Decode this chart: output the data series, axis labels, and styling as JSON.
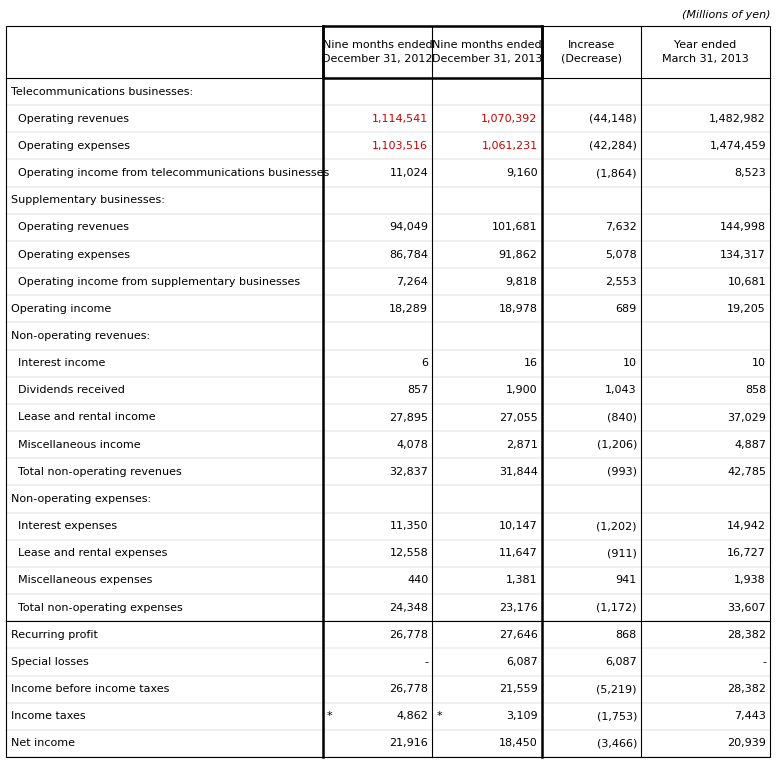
{
  "header_note": "(Millions of yen)",
  "col_headers": [
    "Nine months ended\nDecember 31, 2012",
    "Nine months ended\nDecember 31, 2013",
    "Increase\n(Decrease)",
    "Year ended\nMarch 31, 2013"
  ],
  "rows": [
    {
      "label": "Telecommunications businesses:",
      "indent": 0,
      "values": [
        "",
        "",
        "",
        ""
      ],
      "section_header": true,
      "separator_above": false,
      "col1_red": false,
      "col2_red": false,
      "asterisk": false
    },
    {
      "label": "  Operating revenues",
      "indent": 1,
      "values": [
        "1,114,541",
        "1,070,392",
        "(44,148)",
        "1,482,982"
      ],
      "section_header": false,
      "separator_above": false,
      "col1_red": true,
      "col2_red": true,
      "asterisk": false
    },
    {
      "label": "  Operating expenses",
      "indent": 1,
      "values": [
        "1,103,516",
        "1,061,231",
        "(42,284)",
        "1,474,459"
      ],
      "section_header": false,
      "separator_above": false,
      "col1_red": true,
      "col2_red": true,
      "asterisk": false
    },
    {
      "label": "  Operating income from telecommunications businesses",
      "indent": 1,
      "values": [
        "11,024",
        "9,160",
        "(1,864)",
        "8,523"
      ],
      "section_header": false,
      "separator_above": false,
      "col1_red": false,
      "col2_red": false,
      "asterisk": false
    },
    {
      "label": "Supplementary businesses:",
      "indent": 0,
      "values": [
        "",
        "",
        "",
        ""
      ],
      "section_header": true,
      "separator_above": false,
      "col1_red": false,
      "col2_red": false,
      "asterisk": false
    },
    {
      "label": "  Operating revenues",
      "indent": 1,
      "values": [
        "94,049",
        "101,681",
        "7,632",
        "144,998"
      ],
      "section_header": false,
      "separator_above": false,
      "col1_red": false,
      "col2_red": false,
      "asterisk": false
    },
    {
      "label": "  Operating expenses",
      "indent": 1,
      "values": [
        "86,784",
        "91,862",
        "5,078",
        "134,317"
      ],
      "section_header": false,
      "separator_above": false,
      "col1_red": false,
      "col2_red": false,
      "asterisk": false
    },
    {
      "label": "  Operating income from supplementary businesses",
      "indent": 1,
      "values": [
        "7,264",
        "9,818",
        "2,553",
        "10,681"
      ],
      "section_header": false,
      "separator_above": false,
      "col1_red": false,
      "col2_red": false,
      "asterisk": false
    },
    {
      "label": "Operating income",
      "indent": 0,
      "values": [
        "18,289",
        "18,978",
        "689",
        "19,205"
      ],
      "section_header": false,
      "separator_above": false,
      "col1_red": false,
      "col2_red": false,
      "asterisk": false
    },
    {
      "label": "Non-operating revenues:",
      "indent": 0,
      "values": [
        "",
        "",
        "",
        ""
      ],
      "section_header": true,
      "separator_above": false,
      "col1_red": false,
      "col2_red": false,
      "asterisk": false
    },
    {
      "label": "  Interest income",
      "indent": 1,
      "values": [
        "6",
        "16",
        "10",
        "10"
      ],
      "section_header": false,
      "separator_above": false,
      "col1_red": false,
      "col2_red": false,
      "asterisk": false
    },
    {
      "label": "  Dividends received",
      "indent": 1,
      "values": [
        "857",
        "1,900",
        "1,043",
        "858"
      ],
      "section_header": false,
      "separator_above": false,
      "col1_red": false,
      "col2_red": false,
      "asterisk": false
    },
    {
      "label": "  Lease and rental income",
      "indent": 1,
      "values": [
        "27,895",
        "27,055",
        "(840)",
        "37,029"
      ],
      "section_header": false,
      "separator_above": false,
      "col1_red": false,
      "col2_red": false,
      "asterisk": false
    },
    {
      "label": "  Miscellaneous income",
      "indent": 1,
      "values": [
        "4,078",
        "2,871",
        "(1,206)",
        "4,887"
      ],
      "section_header": false,
      "separator_above": false,
      "col1_red": false,
      "col2_red": false,
      "asterisk": false
    },
    {
      "label": "  Total non-operating revenues",
      "indent": 1,
      "values": [
        "32,837",
        "31,844",
        "(993)",
        "42,785"
      ],
      "section_header": false,
      "separator_above": false,
      "col1_red": false,
      "col2_red": false,
      "asterisk": false
    },
    {
      "label": "Non-operating expenses:",
      "indent": 0,
      "values": [
        "",
        "",
        "",
        ""
      ],
      "section_header": true,
      "separator_above": false,
      "col1_red": false,
      "col2_red": false,
      "asterisk": false
    },
    {
      "label": "  Interest expenses",
      "indent": 1,
      "values": [
        "11,350",
        "10,147",
        "(1,202)",
        "14,942"
      ],
      "section_header": false,
      "separator_above": false,
      "col1_red": false,
      "col2_red": false,
      "asterisk": false
    },
    {
      "label": "  Lease and rental expenses",
      "indent": 1,
      "values": [
        "12,558",
        "11,647",
        "(911)",
        "16,727"
      ],
      "section_header": false,
      "separator_above": false,
      "col1_red": false,
      "col2_red": false,
      "asterisk": false
    },
    {
      "label": "  Miscellaneous expenses",
      "indent": 1,
      "values": [
        "440",
        "1,381",
        "941",
        "1,938"
      ],
      "section_header": false,
      "separator_above": false,
      "col1_red": false,
      "col2_red": false,
      "asterisk": false
    },
    {
      "label": "  Total non-operating expenses",
      "indent": 1,
      "values": [
        "24,348",
        "23,176",
        "(1,172)",
        "33,607"
      ],
      "section_header": false,
      "separator_above": false,
      "col1_red": false,
      "col2_red": false,
      "asterisk": false
    },
    {
      "label": "Recurring profit",
      "indent": 0,
      "values": [
        "26,778",
        "27,646",
        "868",
        "28,382"
      ],
      "section_header": false,
      "separator_above": true,
      "col1_red": false,
      "col2_red": false,
      "asterisk": false
    },
    {
      "label": "Special losses",
      "indent": 0,
      "values": [
        "-",
        "6,087",
        "6,087",
        "-"
      ],
      "section_header": false,
      "separator_above": false,
      "col1_red": false,
      "col2_red": false,
      "asterisk": false
    },
    {
      "label": "Income before income taxes",
      "indent": 0,
      "values": [
        "26,778",
        "21,559",
        "(5,219)",
        "28,382"
      ],
      "section_header": false,
      "separator_above": false,
      "col1_red": false,
      "col2_red": false,
      "asterisk": false
    },
    {
      "label": "Income taxes",
      "indent": 0,
      "values": [
        "4,862",
        "3,109",
        "(1,753)",
        "7,443"
      ],
      "section_header": false,
      "separator_above": false,
      "col1_red": false,
      "col2_red": false,
      "asterisk": true
    },
    {
      "label": "Net income",
      "indent": 0,
      "values": [
        "21,916",
        "18,450",
        "(3,466)",
        "20,939"
      ],
      "section_header": false,
      "separator_above": false,
      "col1_red": false,
      "col2_red": false,
      "asterisk": false
    }
  ],
  "bg_color": "#ffffff",
  "border_color": "#000000",
  "thick_border_cols": [
    1,
    2
  ],
  "text_color": "#000000",
  "red_color": "#cc0000",
  "font_size": 8.0,
  "header_font_size": 8.0,
  "note_font_size": 8.0
}
